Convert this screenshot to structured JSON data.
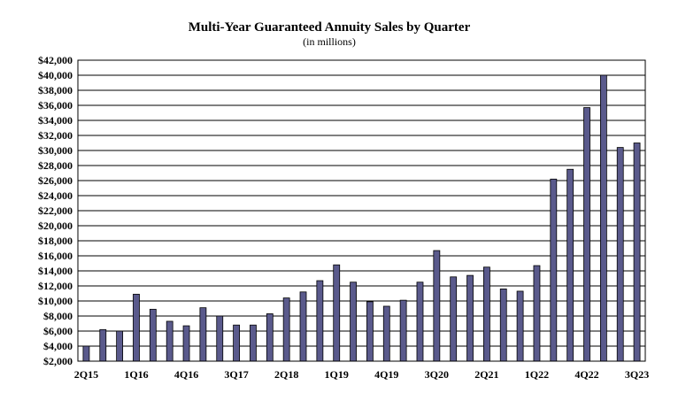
{
  "chart_data": {
    "type": "bar",
    "title": "Multi-Year Guaranteed Annuity Sales by Quarter",
    "subtitle": "(in millions)",
    "xlabel": "",
    "ylabel": "",
    "ylim": [
      2000,
      42000
    ],
    "y_tick_step": 2000,
    "y_tick_labels": [
      "$2,000",
      "$4,000",
      "$6,000",
      "$8,000",
      "$10,000",
      "$12,000",
      "$14,000",
      "$16,000",
      "$18,000",
      "$20,000",
      "$22,000",
      "$24,000",
      "$26,000",
      "$28,000",
      "$30,000",
      "$32,000",
      "$34,000",
      "$36,000",
      "$38,000",
      "$40,000",
      "$42,000"
    ],
    "categories": [
      "2Q15",
      "3Q15",
      "4Q15",
      "1Q16",
      "2Q16",
      "3Q16",
      "4Q16",
      "1Q17",
      "2Q17",
      "3Q17",
      "4Q17",
      "1Q18",
      "2Q18",
      "3Q18",
      "4Q18",
      "1Q19",
      "2Q19",
      "3Q19",
      "4Q19",
      "1Q20",
      "2Q20",
      "3Q20",
      "4Q20",
      "1Q21",
      "2Q21",
      "3Q21",
      "4Q21",
      "1Q22",
      "2Q22",
      "3Q22",
      "4Q22",
      "1Q23",
      "2Q23",
      "3Q23"
    ],
    "x_tick_labels": [
      "2Q15",
      "",
      "",
      "1Q16",
      "",
      "",
      "4Q16",
      "",
      "",
      "3Q17",
      "",
      "",
      "2Q18",
      "",
      "",
      "1Q19",
      "",
      "",
      "4Q19",
      "",
      "",
      "3Q20",
      "",
      "",
      "2Q21",
      "",
      "",
      "1Q22",
      "",
      "",
      "4Q22",
      "",
      "",
      "3Q23"
    ],
    "values": [
      4000,
      6200,
      6000,
      10900,
      8900,
      7300,
      6700,
      9100,
      8000,
      6800,
      6800,
      8300,
      10400,
      11200,
      12700,
      14800,
      12500,
      9900,
      9300,
      10100,
      12500,
      16700,
      13200,
      13400,
      14500,
      11600,
      11300,
      14700,
      26200,
      27500,
      35700,
      40000,
      30400,
      31000
    ],
    "bar_color": "#5a5a8c",
    "grid": true,
    "legend": "none"
  }
}
